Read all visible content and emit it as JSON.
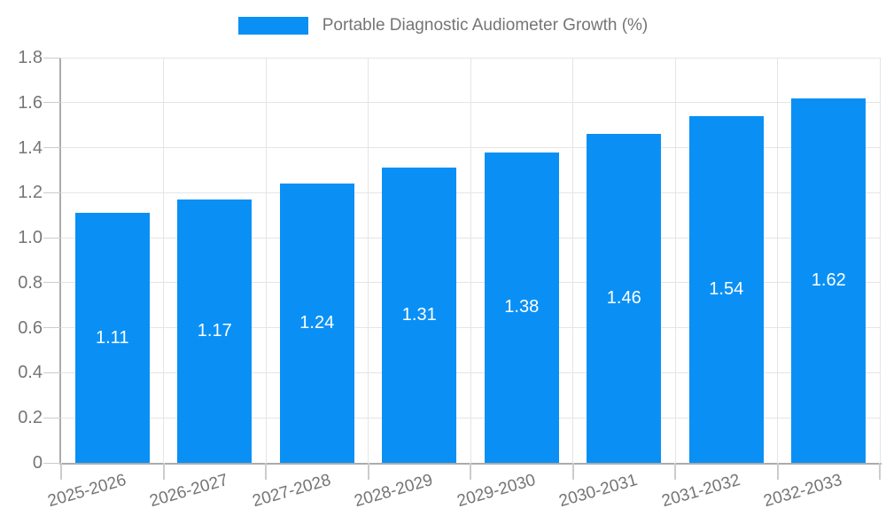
{
  "chart_data": {
    "type": "bar",
    "title": "Portable Diagnostic Audiometer Growth (%)",
    "categories": [
      "2025-2026",
      "2026-2027",
      "2027-2028",
      "2028-2029",
      "2029-2030",
      "2030-2031",
      "2031-2032",
      "2032-2033"
    ],
    "values": [
      1.11,
      1.17,
      1.24,
      1.31,
      1.38,
      1.46,
      1.54,
      1.62
    ],
    "xlabel": "",
    "ylabel": "",
    "ylim": [
      0,
      1.8
    ],
    "ytick_step": 0.2,
    "ytick_labels": [
      "0",
      "0.2",
      "0.4",
      "0.6",
      "0.8",
      "1.0",
      "1.2",
      "1.4",
      "1.6",
      "1.8"
    ],
    "grid": true,
    "legend_position": "top-center",
    "data_labels_visible": true,
    "data_label_position": "inside-center",
    "x_label_rotation_deg": -16,
    "colors": {
      "bar": "#0a90f5",
      "data_label": "#ffffff",
      "axis_text": "#757575",
      "grid_line": "#e5e5e5",
      "axis_line": "#ababab",
      "tick": "#cccccc",
      "background": "#ffffff"
    }
  }
}
